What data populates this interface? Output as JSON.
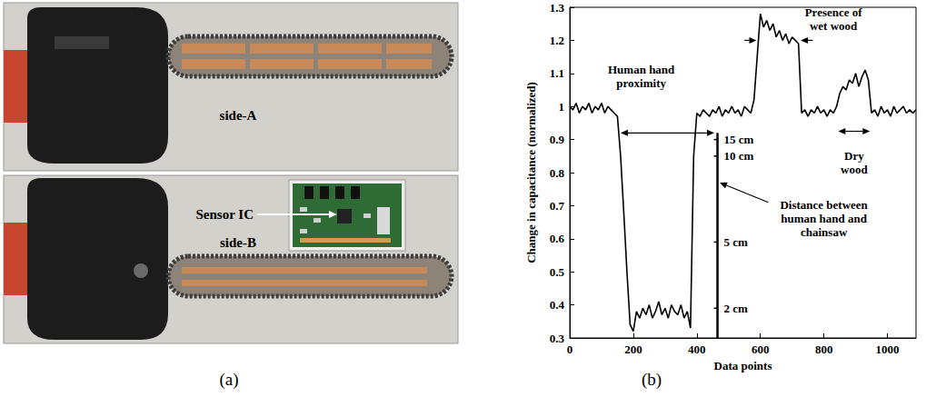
{
  "panel_a": {
    "letter": "(a)",
    "top_label": "side-A",
    "bottom_label": "side-B",
    "inset_label": "Sensor IC"
  },
  "panel_b": {
    "letter": "(b)"
  },
  "chart_data": {
    "type": "line",
    "x_label": "Data points",
    "y_label": "Change in capacitance (normalized)",
    "color": "#000000",
    "grid": false,
    "xlim": [
      0,
      1090
    ],
    "xticks": [
      0,
      200,
      400,
      600,
      800,
      1000
    ],
    "ylim": [
      0.3,
      1.3
    ],
    "yticks": [
      0.3,
      0.4,
      0.5,
      0.6,
      0.7,
      0.8,
      0.9,
      1,
      1.1,
      1.2,
      1.3
    ],
    "x": [
      0,
      10,
      20,
      30,
      40,
      50,
      60,
      70,
      80,
      90,
      100,
      110,
      120,
      130,
      140,
      150,
      160,
      170,
      180,
      190,
      200,
      210,
      220,
      230,
      240,
      250,
      260,
      270,
      280,
      290,
      300,
      310,
      320,
      330,
      340,
      350,
      360,
      370,
      380,
      390,
      400,
      410,
      420,
      430,
      440,
      450,
      460,
      470,
      480,
      490,
      500,
      510,
      520,
      530,
      540,
      550,
      560,
      570,
      580,
      590,
      600,
      610,
      620,
      630,
      640,
      650,
      660,
      670,
      680,
      690,
      700,
      710,
      720,
      730,
      740,
      750,
      760,
      770,
      780,
      790,
      800,
      810,
      820,
      830,
      840,
      850,
      860,
      870,
      880,
      890,
      900,
      910,
      920,
      930,
      940,
      950,
      960,
      970,
      980,
      990,
      1000,
      1010,
      1020,
      1030,
      1040,
      1050,
      1060,
      1070,
      1080,
      1090
    ],
    "values": [
      1.0,
      0.99,
      1.01,
      0.98,
      1.0,
      0.99,
      1.01,
      0.98,
      1.0,
      0.99,
      1.01,
      0.98,
      1.0,
      0.99,
      0.98,
      0.97,
      0.85,
      0.68,
      0.5,
      0.34,
      0.32,
      0.38,
      0.36,
      0.39,
      0.37,
      0.4,
      0.36,
      0.38,
      0.41,
      0.37,
      0.39,
      0.36,
      0.4,
      0.38,
      0.37,
      0.4,
      0.36,
      0.38,
      0.33,
      0.85,
      0.98,
      0.97,
      0.99,
      0.98,
      0.97,
      0.99,
      0.98,
      1.0,
      0.97,
      0.99,
      0.98,
      1.0,
      0.98,
      0.99,
      0.97,
      1.0,
      0.99,
      0.98,
      1.02,
      1.15,
      1.28,
      1.24,
      1.26,
      1.23,
      1.25,
      1.21,
      1.23,
      1.2,
      1.22,
      1.19,
      1.21,
      1.2,
      1.19,
      0.98,
      0.99,
      0.97,
      0.99,
      0.98,
      1.0,
      0.98,
      0.99,
      0.97,
      0.99,
      0.98,
      1.0,
      1.04,
      1.06,
      1.05,
      1.08,
      1.07,
      1.1,
      1.06,
      1.09,
      1.11,
      1.08,
      0.98,
      0.99,
      0.97,
      1.0,
      0.98,
      0.99,
      0.97,
      1.0,
      0.98,
      0.99,
      1.0,
      0.98,
      0.99,
      0.98,
      0.99
    ],
    "annotations": [
      {
        "text": "Human hand proximity",
        "x": 225,
        "y": 1.09,
        "arrows": [
          [
            [
              300,
              0.92
            ],
            [
              160,
              0.92
            ]
          ],
          [
            [
              300,
              0.92
            ],
            [
              455,
              0.92
            ]
          ]
        ]
      },
      {
        "text": "Presence of wet wood",
        "x": 830,
        "y": 1.265,
        "arrows": [
          [
            [
              550,
              1.2
            ],
            [
              588,
              1.2
            ]
          ],
          [
            [
              765,
              1.2
            ],
            [
              727,
              1.2
            ]
          ]
        ]
      },
      {
        "text": "Dry wood",
        "x": 895,
        "y": 0.83,
        "arrows": [
          [
            [
              895,
              0.925
            ],
            [
              845,
              0.925
            ]
          ],
          [
            [
              895,
              0.925
            ],
            [
              945,
              0.925
            ]
          ]
        ]
      },
      {
        "text": "Distance between human hand and chainsaw",
        "x": 800,
        "y": 0.66,
        "arrows": [
          [
            [
              625,
              0.71
            ],
            [
              472,
              0.77
            ]
          ]
        ]
      }
    ],
    "distance_scale": {
      "x": 465,
      "y_top": 0.92,
      "ticks": [
        {
          "value": 0.9,
          "label": "15 cm"
        },
        {
          "value": 0.85,
          "label": "10 cm"
        },
        {
          "value": 0.59,
          "label": "5 cm"
        },
        {
          "value": 0.39,
          "label": "2 cm"
        }
      ]
    }
  }
}
